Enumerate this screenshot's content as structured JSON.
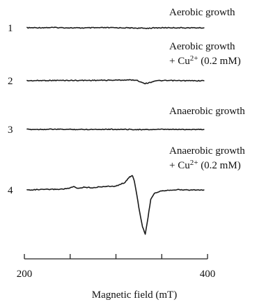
{
  "chart_data": {
    "type": "line",
    "title": "",
    "xlabel": "Magnetic field (mT)",
    "ylabel": "",
    "xlim": [
      200,
      400
    ],
    "x_ticks": [
      200,
      250,
      300,
      350,
      400
    ],
    "x_tick_labels": [
      "200",
      "400"
    ],
    "grid": false,
    "series": [
      {
        "id": "1",
        "number": "1",
        "label_lines": [
          "Aerobic growth"
        ],
        "x": [
          203,
          230,
          260,
          290,
          310,
          325,
          332,
          340,
          355,
          375,
          396
        ],
        "y": [
          0,
          0.02,
          -0.01,
          0.01,
          0,
          -0.02,
          -0.03,
          -0.01,
          0.01,
          0,
          0
        ]
      },
      {
        "id": "2",
        "number": "2",
        "label_lines": [
          "Aerobic growth",
          "+ Cu2+ (0.2 mM)"
        ],
        "x": [
          203,
          230,
          260,
          290,
          315,
          322,
          328,
          332,
          337,
          343,
          360,
          380,
          396
        ],
        "y": [
          0,
          0.02,
          0.02,
          0.03,
          0.05,
          0.04,
          -0.1,
          -0.18,
          -0.12,
          0,
          0.01,
          0,
          0
        ]
      },
      {
        "id": "3",
        "number": "3",
        "label_lines": [
          "Anaerobic growth"
        ],
        "x": [
          203,
          230,
          260,
          290,
          320,
          330,
          336,
          345,
          370,
          396
        ],
        "y": [
          0,
          0.01,
          0,
          0.01,
          0,
          -0.02,
          -0.01,
          0,
          0,
          0
        ]
      },
      {
        "id": "4",
        "number": "4",
        "label_lines": [
          "Anaerobic growth",
          "+ Cu2+ (0.2 mM)"
        ],
        "x": [
          203,
          220,
          240,
          250,
          254,
          258,
          265,
          275,
          285,
          300,
          310,
          315,
          318,
          320,
          323,
          326,
          329,
          332,
          335,
          338,
          342,
          350,
          365,
          380,
          396
        ],
        "y": [
          0,
          0.03,
          0.05,
          0.12,
          0.22,
          0.1,
          0.18,
          0.15,
          0.22,
          0.25,
          0.5,
          0.85,
          0.95,
          0.6,
          -0.4,
          -1.5,
          -2.4,
          -2.9,
          -1.8,
          -0.6,
          -0.2,
          -0.05,
          0.02,
          0,
          0
        ]
      }
    ]
  }
}
